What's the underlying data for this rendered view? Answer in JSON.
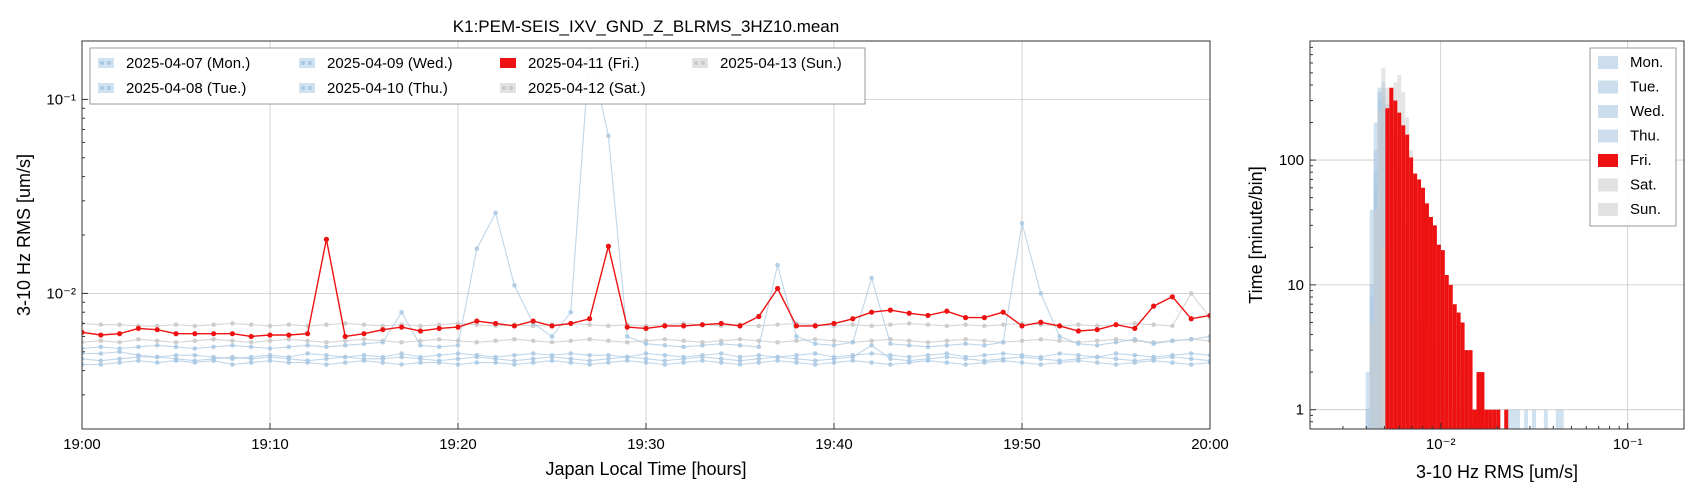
{
  "chart_data": [
    {
      "type": "line",
      "title": "K1:PEM-SEIS_IXV_GND_Z_BLRMS_3HZ10.mean",
      "xlabel": "Japan Local Time [hours]",
      "ylabel": "3-10 Hz RMS [um/s]",
      "y_scale": "log",
      "xlim": [
        0,
        60
      ],
      "ylim": [
        0.002,
        0.2
      ],
      "x_unit": "minutes after 19:00",
      "x_ticks": [
        0,
        10,
        20,
        30,
        40,
        50,
        60
      ],
      "x_tick_labels": [
        "19:00",
        "19:10",
        "19:20",
        "19:30",
        "19:40",
        "19:50",
        "20:00"
      ],
      "y_ticks": [
        0.01,
        0.1
      ],
      "y_tick_labels": [
        "10⁻²",
        "10⁻¹"
      ],
      "grid": true,
      "legend_position": "top-left",
      "x": [
        0,
        1,
        2,
        3,
        4,
        5,
        6,
        7,
        8,
        9,
        10,
        11,
        12,
        13,
        14,
        15,
        16,
        17,
        18,
        19,
        20,
        21,
        22,
        23,
        24,
        25,
        26,
        27,
        28,
        29,
        30,
        31,
        32,
        33,
        34,
        35,
        36,
        37,
        38,
        39,
        40,
        41,
        42,
        43,
        44,
        45,
        46,
        47,
        48,
        49,
        50,
        51,
        52,
        53,
        54,
        55,
        56,
        57,
        58,
        59,
        60
      ],
      "series": [
        {
          "name": "2025-04-07 (Mon.)",
          "color": "#a9c8e2",
          "values": [
            0.0049,
            0.0049,
            0.005,
            0.0048,
            0.0047,
            0.0048,
            0.0048,
            0.0047,
            0.0046,
            0.0047,
            0.0048,
            0.0047,
            0.0049,
            0.0048,
            0.0047,
            0.0048,
            0.0047,
            0.0049,
            0.0047,
            0.0048,
            0.0049,
            0.0048,
            0.0047,
            0.0048,
            0.0049,
            0.0048,
            0.0049,
            0.0048,
            0.0048,
            0.0047,
            0.0049,
            0.0048,
            0.0047,
            0.0048,
            0.0049,
            0.0047,
            0.0048,
            0.0047,
            0.0048,
            0.0049,
            0.0047,
            0.0048,
            0.0049,
            0.0048,
            0.0047,
            0.0048,
            0.0049,
            0.0047,
            0.0048,
            0.0049,
            0.0048,
            0.0047,
            0.0049,
            0.0048,
            0.0047,
            0.0049,
            0.0048,
            0.0047,
            0.0048,
            0.0049,
            0.0048
          ]
        },
        {
          "name": "2025-04-08 (Tue.)",
          "color": "#a9c8e2",
          "values": [
            0.0043,
            0.0043,
            0.0044,
            0.0045,
            0.0044,
            0.0045,
            0.0044,
            0.0045,
            0.0043,
            0.0044,
            0.0045,
            0.0044,
            0.0044,
            0.0043,
            0.0044,
            0.0045,
            0.0044,
            0.0043,
            0.0044,
            0.0044,
            0.0043,
            0.0044,
            0.0044,
            0.0043,
            0.0044,
            0.0045,
            0.0044,
            0.0043,
            0.0044,
            0.0045,
            0.0044,
            0.0043,
            0.0044,
            0.0045,
            0.0044,
            0.0043,
            0.0044,
            0.0045,
            0.0044,
            0.0043,
            0.0044,
            0.0045,
            0.0044,
            0.0043,
            0.0044,
            0.0045,
            0.0044,
            0.0043,
            0.0044,
            0.0045,
            0.0044,
            0.0043,
            0.0044,
            0.0045,
            0.0044,
            0.0043,
            0.0044,
            0.0045,
            0.0044,
            0.0043,
            0.0044
          ]
        },
        {
          "name": "2025-04-09 (Wed.)",
          "color": "#a9c8e2",
          "values": [
            0.0046,
            0.0045,
            0.0046,
            0.0047,
            0.0047,
            0.0046,
            0.0045,
            0.0046,
            0.0047,
            0.0046,
            0.0047,
            0.0046,
            0.0045,
            0.0046,
            0.0047,
            0.0046,
            0.0046,
            0.0047,
            0.0046,
            0.0045,
            0.0046,
            0.0047,
            0.0046,
            0.0045,
            0.0046,
            0.0047,
            0.0046,
            0.0045,
            0.0046,
            0.0047,
            0.0046,
            0.0045,
            0.0046,
            0.0047,
            0.0046,
            0.0045,
            0.0046,
            0.0047,
            0.0046,
            0.0045,
            0.0046,
            0.0047,
            0.0054,
            0.0046,
            0.0045,
            0.0046,
            0.0047,
            0.0046,
            0.0045,
            0.0046,
            0.0047,
            0.0046,
            0.0045,
            0.0046,
            0.0047,
            0.0046,
            0.0045,
            0.0046,
            0.0047,
            0.0046,
            0.0045
          ]
        },
        {
          "name": "2025-04-10 (Thu.)",
          "color": "#a9c8e2",
          "values": [
            0.0052,
            0.0053,
            0.0052,
            0.0053,
            0.0054,
            0.0053,
            0.0052,
            0.0053,
            0.0054,
            0.0053,
            0.0052,
            0.0053,
            0.0054,
            0.0053,
            0.0054,
            0.0055,
            0.0056,
            0.008,
            0.0054,
            0.0053,
            0.0054,
            0.017,
            0.026,
            0.011,
            0.007,
            0.006,
            0.008,
            0.18,
            0.065,
            0.006,
            0.0055,
            0.0054,
            0.0053,
            0.0054,
            0.0055,
            0.0054,
            0.0053,
            0.014,
            0.006,
            0.0055,
            0.0054,
            0.0056,
            0.012,
            0.0055,
            0.0054,
            0.0053,
            0.0054,
            0.0055,
            0.0054,
            0.0056,
            0.023,
            0.01,
            0.006,
            0.0055,
            0.0054,
            0.0056,
            0.0058,
            0.0055,
            0.0057,
            0.0058,
            0.006
          ]
        },
        {
          "name": "2025-04-11 (Fri.)",
          "color": "#ee1111",
          "values": [
            0.0063,
            0.0061,
            0.0062,
            0.0066,
            0.0065,
            0.0062,
            0.0062,
            0.0062,
            0.0062,
            0.006,
            0.0061,
            0.0061,
            0.0062,
            0.019,
            0.006,
            0.0062,
            0.0065,
            0.0067,
            0.0064,
            0.0066,
            0.0067,
            0.0072,
            0.007,
            0.0068,
            0.0072,
            0.0068,
            0.007,
            0.0074,
            0.0175,
            0.0067,
            0.0066,
            0.0068,
            0.0068,
            0.0069,
            0.007,
            0.0068,
            0.0076,
            0.0106,
            0.0068,
            0.0068,
            0.007,
            0.0074,
            0.008,
            0.0082,
            0.0079,
            0.0077,
            0.0081,
            0.0075,
            0.0075,
            0.008,
            0.0068,
            0.0071,
            0.0068,
            0.0064,
            0.0065,
            0.0069,
            0.0066,
            0.0086,
            0.0096,
            0.0074,
            0.0077
          ]
        },
        {
          "name": "2025-04-12 (Sat.)",
          "color": "#c8c8c8",
          "values": [
            0.007,
            0.0069,
            0.0069,
            0.0068,
            0.0068,
            0.0069,
            0.0068,
            0.0069,
            0.007,
            0.0069,
            0.0068,
            0.0069,
            0.0068,
            0.0069,
            0.007,
            0.0069,
            0.0068,
            0.0069,
            0.0068,
            0.0069,
            0.007,
            0.0069,
            0.0068,
            0.0069,
            0.0068,
            0.0069,
            0.007,
            0.0069,
            0.0068,
            0.0069,
            0.0068,
            0.0069,
            0.007,
            0.0069,
            0.0068,
            0.0069,
            0.0068,
            0.0069,
            0.007,
            0.0069,
            0.0068,
            0.0069,
            0.0068,
            0.0069,
            0.007,
            0.0069,
            0.0068,
            0.0069,
            0.0068,
            0.0069,
            0.007,
            0.0069,
            0.0068,
            0.0069,
            0.0068,
            0.0069,
            0.007,
            0.0069,
            0.0068,
            0.01,
            0.0075
          ]
        },
        {
          "name": "2025-04-13 (Sun.)",
          "color": "#c8c8c8",
          "values": [
            0.0056,
            0.0057,
            0.0056,
            0.0058,
            0.0057,
            0.0056,
            0.0057,
            0.0058,
            0.0057,
            0.0056,
            0.0057,
            0.0058,
            0.0057,
            0.0056,
            0.0057,
            0.0058,
            0.0057,
            0.0056,
            0.0057,
            0.0058,
            0.0057,
            0.0056,
            0.0057,
            0.0058,
            0.0057,
            0.0056,
            0.0057,
            0.0058,
            0.0057,
            0.0056,
            0.0057,
            0.0058,
            0.0057,
            0.0056,
            0.0057,
            0.0058,
            0.0057,
            0.0056,
            0.0057,
            0.0058,
            0.0057,
            0.0056,
            0.0057,
            0.0058,
            0.0057,
            0.0056,
            0.0057,
            0.0058,
            0.0057,
            0.0056,
            0.0057,
            0.0058,
            0.0057,
            0.0056,
            0.0057,
            0.0058,
            0.0057,
            0.0056,
            0.0057,
            0.0058,
            0.0057
          ]
        }
      ]
    },
    {
      "type": "bar",
      "subtype": "histogram",
      "xlabel": "3-10 Hz RMS [um/s]",
      "ylabel": "Time [minute/bin]",
      "x_scale": "log",
      "y_scale": "log",
      "xlim": [
        0.002,
        0.2
      ],
      "ylim": [
        0.7,
        900
      ],
      "x_ticks": [
        0.01,
        0.1
      ],
      "x_tick_labels": [
        "10⁻²",
        "10⁻¹"
      ],
      "y_ticks": [
        1,
        10,
        100
      ],
      "y_tick_labels": [
        "1",
        "10",
        "100"
      ],
      "grid": true,
      "legend_position": "top-right",
      "bin_edges": [
        0.00397,
        0.00417,
        0.00438,
        0.00459,
        0.00482,
        0.00506,
        0.00531,
        0.00558,
        0.00586,
        0.00615,
        0.00646,
        0.00678,
        0.00712,
        0.00748,
        0.00785,
        0.00824,
        0.00865,
        0.00909,
        0.00954,
        0.01002,
        0.01052,
        0.01104,
        0.0116,
        0.01218,
        0.01278,
        0.01342,
        0.0141,
        0.0148,
        0.01554,
        0.01632,
        0.01713,
        0.01799,
        0.01889,
        0.01983,
        0.02083,
        0.02187,
        0.02296,
        0.02411,
        0.02531,
        0.02658,
        0.02791,
        0.0293,
        0.03077,
        0.03231,
        0.03392,
        0.03562,
        0.0374,
        0.03927,
        0.04123,
        0.04329,
        0.04546
      ],
      "series": [
        {
          "name": "Mon.",
          "color": "#aac8e2",
          "values": [
            0,
            5,
            60,
            250,
            320,
            240,
            150,
            80,
            40,
            20,
            12,
            8,
            5,
            4,
            3,
            2,
            2,
            1,
            1,
            1,
            0,
            0,
            0,
            0,
            0,
            0,
            0,
            0,
            0,
            0,
            0,
            0,
            0,
            0,
            0,
            0,
            0,
            0,
            0,
            0,
            0,
            0,
            0,
            0,
            0,
            0,
            0,
            0,
            0,
            0
          ]
        },
        {
          "name": "Tue.",
          "color": "#aac8e2",
          "values": [
            2,
            40,
            200,
            380,
            300,
            190,
            100,
            50,
            25,
            15,
            9,
            6,
            4,
            3,
            2,
            2,
            1,
            1,
            1,
            0,
            0,
            0,
            0,
            0,
            0,
            0,
            0,
            0,
            0,
            0,
            0,
            0,
            0,
            0,
            0,
            0,
            0,
            0,
            0,
            0,
            0,
            0,
            0,
            0,
            0,
            0,
            0,
            0,
            0,
            0
          ]
        },
        {
          "name": "Wed.",
          "color": "#aac8e2",
          "values": [
            0,
            10,
            120,
            350,
            420,
            280,
            160,
            90,
            45,
            25,
            14,
            9,
            6,
            4,
            3,
            2,
            2,
            1,
            1,
            1,
            0,
            0,
            0,
            0,
            0,
            0,
            0,
            0,
            0,
            0,
            0,
            0,
            0,
            0,
            0,
            0,
            0,
            0,
            0,
            0,
            0,
            0,
            0,
            0,
            0,
            0,
            0,
            0,
            0,
            0
          ]
        },
        {
          "name": "Thu.",
          "color": "#aac8e2",
          "values": [
            1,
            8,
            80,
            300,
            380,
            260,
            170,
            110,
            70,
            45,
            30,
            20,
            14,
            10,
            7,
            5,
            4,
            3,
            3,
            2,
            2,
            2,
            1,
            2,
            1,
            2,
            1,
            1,
            1,
            0,
            1,
            0,
            0,
            1,
            0,
            1,
            1,
            1,
            1,
            0,
            1,
            0,
            1,
            0,
            0,
            1,
            0,
            0,
            1,
            1
          ]
        },
        {
          "name": "Fri.",
          "color": "#ee1111",
          "values": [
            0,
            0,
            0,
            0,
            0,
            260,
            380,
            300,
            240,
            190,
            160,
            105,
            78,
            70,
            60,
            45,
            35,
            30,
            21,
            19,
            12,
            10,
            7,
            6,
            5,
            3,
            3,
            1,
            2,
            2,
            1,
            1,
            1,
            1,
            0,
            1,
            0,
            0,
            0,
            0,
            0,
            0,
            0,
            0,
            0,
            0,
            0,
            0,
            0,
            0
          ]
        },
        {
          "name": "Sat.",
          "color": "#cfcfcf",
          "values": [
            0,
            0,
            0,
            0,
            20,
            120,
            300,
            420,
            480,
            350,
            220,
            120,
            60,
            30,
            16,
            9,
            6,
            4,
            3,
            2,
            2,
            1,
            1,
            1,
            0,
            0,
            0,
            0,
            0,
            0,
            0,
            0,
            0,
            0,
            0,
            0,
            0,
            0,
            0,
            0,
            0,
            0,
            0,
            0,
            0,
            0,
            0,
            0,
            0,
            0
          ]
        },
        {
          "name": "Sun.",
          "color": "#cfcfcf",
          "values": [
            0,
            5,
            40,
            250,
            550,
            380,
            220,
            120,
            60,
            32,
            18,
            11,
            7,
            5,
            4,
            3,
            2,
            2,
            1,
            1,
            0,
            0,
            0,
            0,
            0,
            0,
            0,
            0,
            0,
            0,
            0,
            0,
            0,
            0,
            0,
            0,
            0,
            0,
            0,
            0,
            0,
            0,
            0,
            0,
            0,
            0,
            0,
            0,
            0,
            0
          ]
        }
      ]
    }
  ]
}
